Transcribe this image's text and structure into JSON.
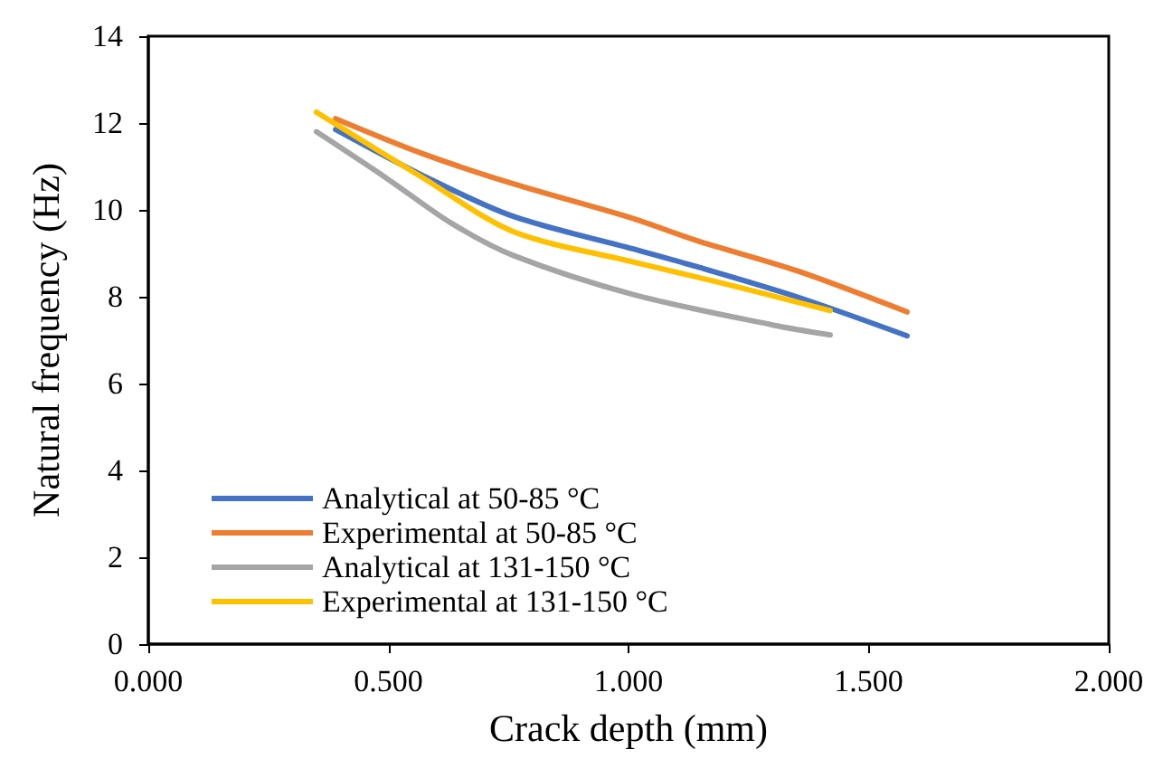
{
  "chart_data": {
    "type": "line",
    "xlabel": "Crack depth (mm)",
    "ylabel": "Natural frequency (Hz)",
    "xlim": [
      0,
      2
    ],
    "xticks": [
      {
        "value": 0,
        "label": "0.000"
      },
      {
        "value": 0.5,
        "label": "0.500"
      },
      {
        "value": 1,
        "label": "1.000"
      },
      {
        "value": 1.5,
        "label": "1.500"
      },
      {
        "value": 2,
        "label": "2.000"
      }
    ],
    "ylim": [
      0,
      14
    ],
    "yticks": [
      0,
      2,
      4,
      6,
      8,
      10,
      12,
      14
    ],
    "grid": false,
    "legend": "bottom left",
    "marker": "none",
    "line_style": "solid",
    "series": [
      {
        "name": "Analytical at 50-85 °C",
        "color": "#4472c4",
        "x": [
          0.39,
          0.57,
          0.76,
          1.01,
          1.14,
          1.35,
          1.58
        ],
        "values": [
          11.85,
          10.8,
          9.85,
          9.1,
          8.7,
          8.0,
          7.1
        ]
      },
      {
        "name": "Experimental at 50-85 °C",
        "color": "#ed7d31",
        "x": [
          0.39,
          0.57,
          0.76,
          1.01,
          1.14,
          1.35,
          1.58
        ],
        "values": [
          12.1,
          11.3,
          10.6,
          9.8,
          9.3,
          8.6,
          7.65
        ]
      },
      {
        "name": "Analytical at 131-150 °C",
        "color": "#a5a5a5",
        "x": [
          0.35,
          0.5,
          0.63,
          0.76,
          1.01,
          1.3,
          1.42
        ],
        "values": [
          11.8,
          10.7,
          9.7,
          8.95,
          8.05,
          7.35,
          7.12
        ]
      },
      {
        "name": "Experimental at 131-150 °C",
        "color": "#ffc000",
        "x": [
          0.35,
          0.57,
          0.76,
          1.01,
          1.2,
          1.42
        ],
        "values": [
          12.25,
          10.75,
          9.5,
          8.8,
          8.3,
          7.68
        ]
      }
    ]
  }
}
